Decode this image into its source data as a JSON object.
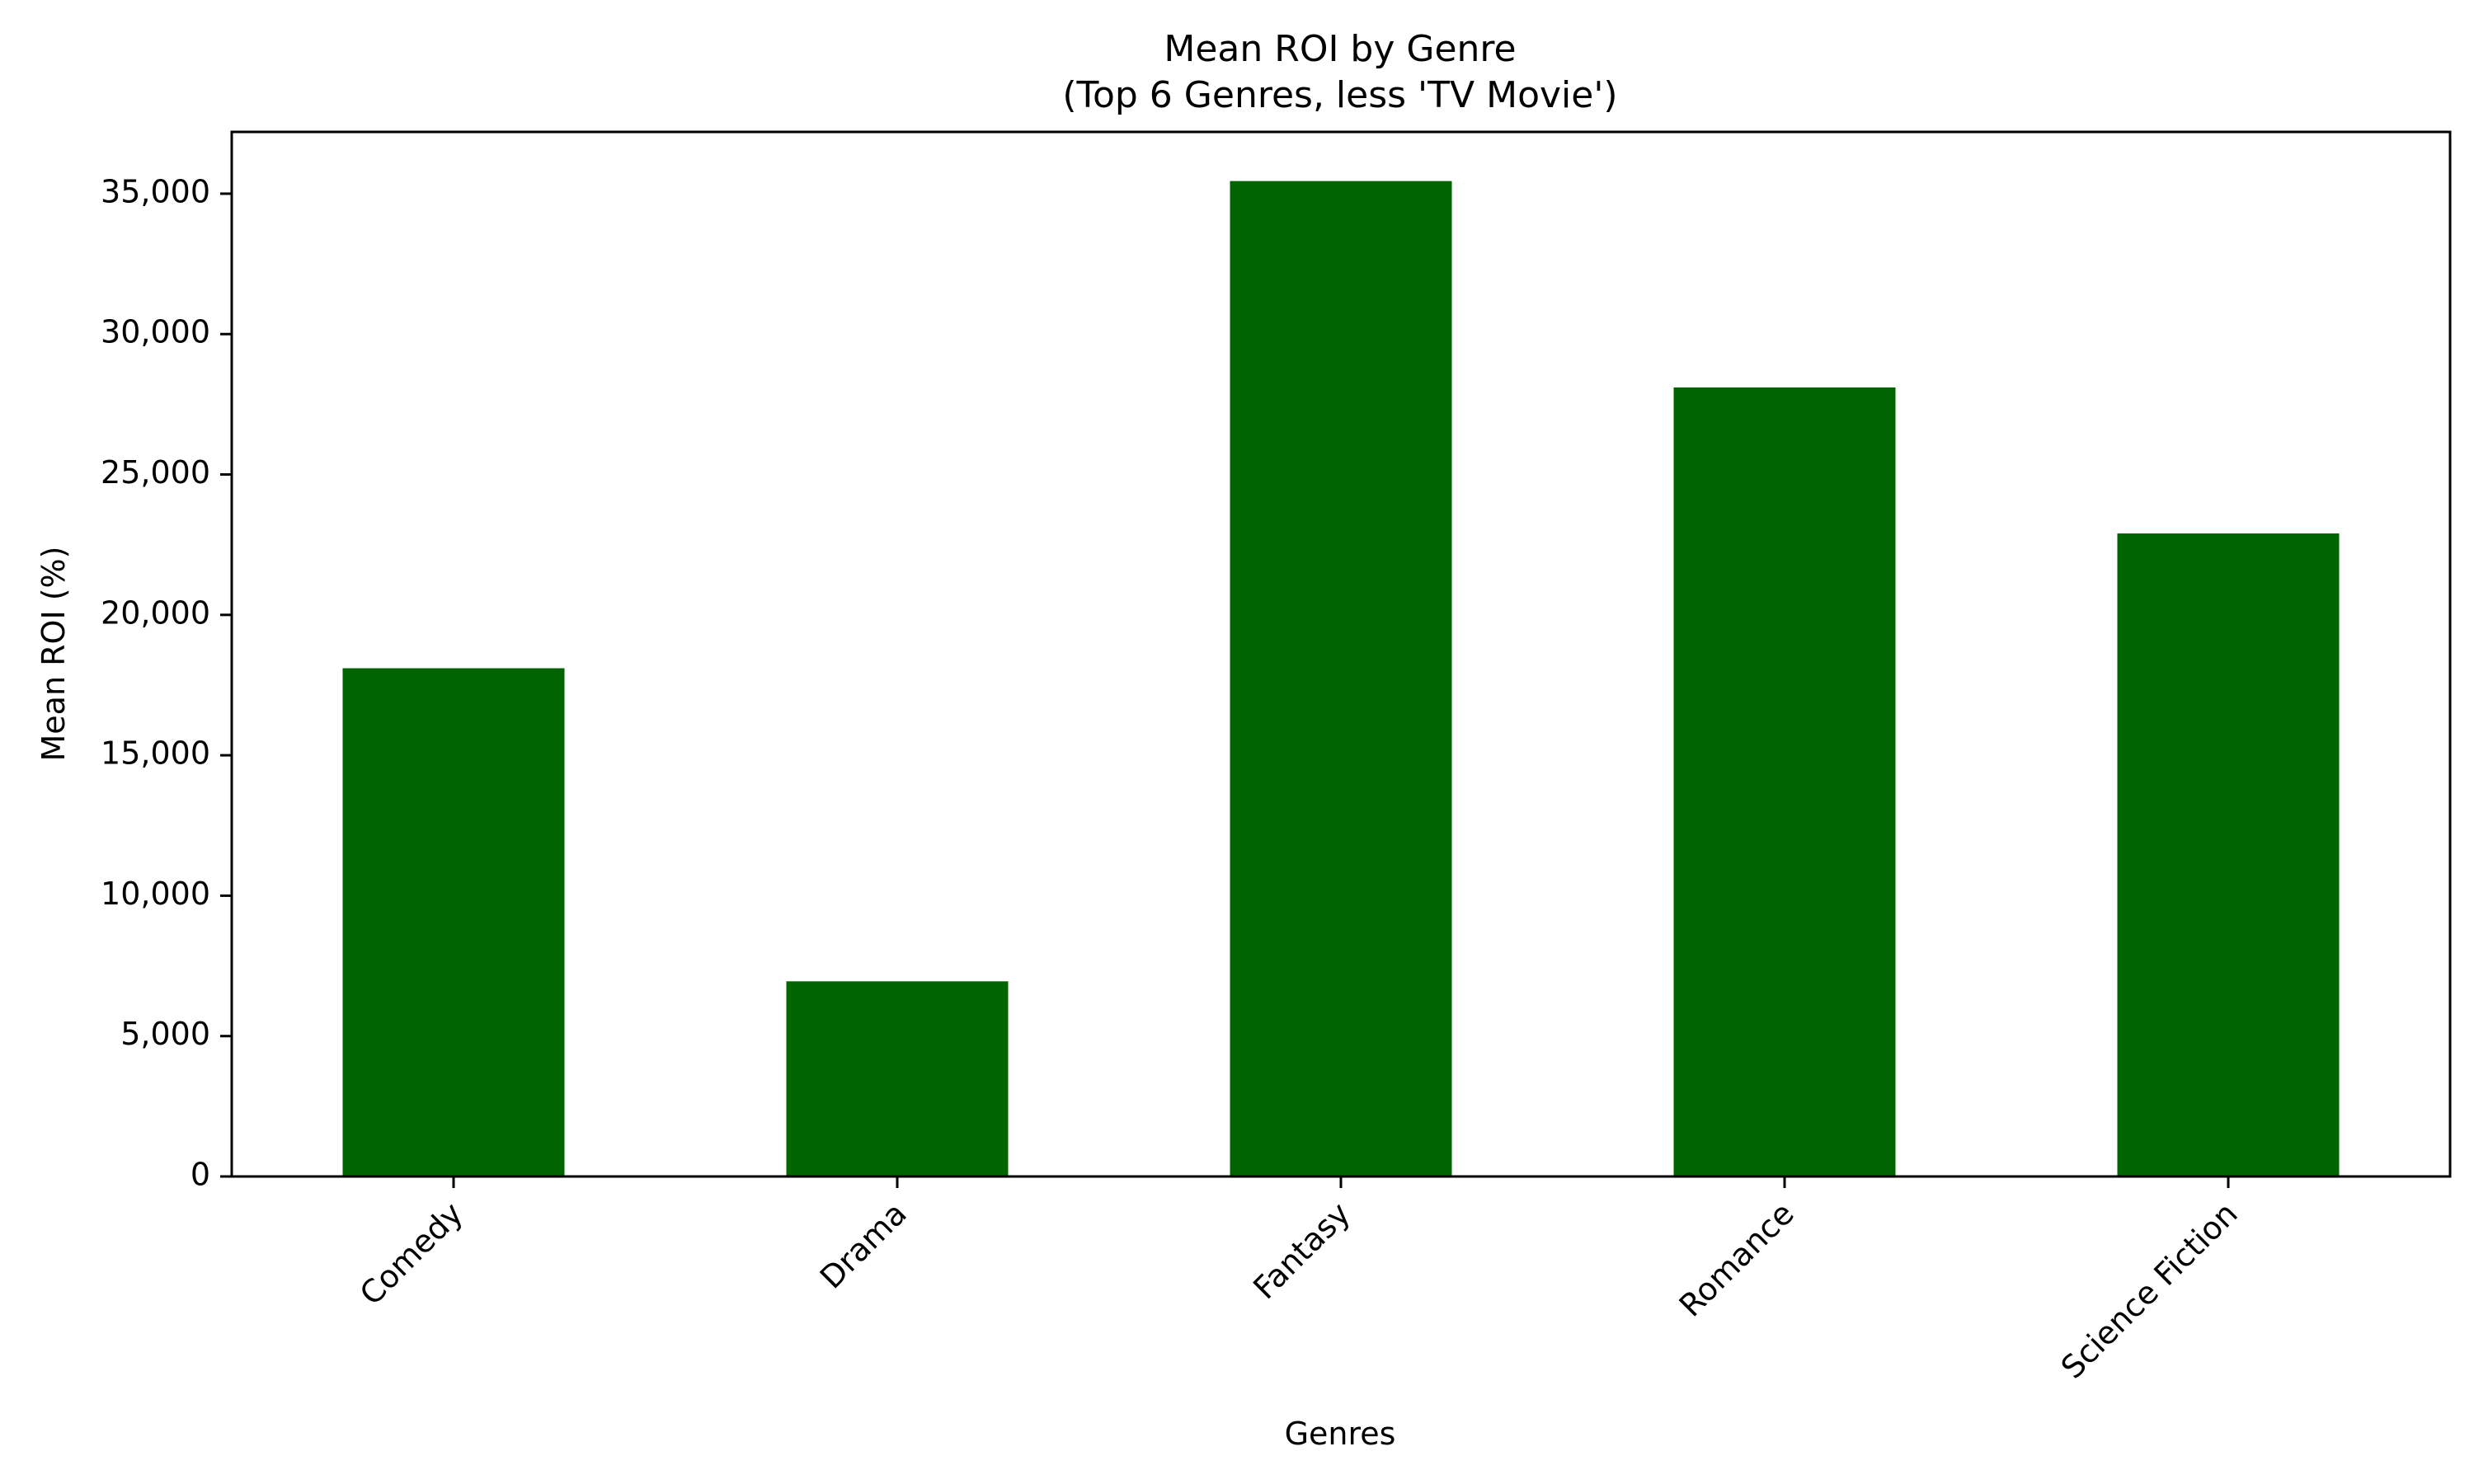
{
  "chart_data": {
    "type": "bar",
    "title_line1": "Mean ROI by Genre",
    "title_line2": "(Top 6 Genres, less 'TV Movie')",
    "xlabel": "Genres",
    "ylabel": "Mean ROI (%)",
    "categories": [
      "Comedy",
      "Drama",
      "Fantasy",
      "Romance",
      "Science Fiction"
    ],
    "values": [
      18100,
      6950,
      35450,
      28100,
      22900
    ],
    "ylim": [
      0,
      37200
    ],
    "yticks": [
      0,
      5000,
      10000,
      15000,
      20000,
      25000,
      30000,
      35000
    ],
    "ytick_labels": [
      "0",
      "5,000",
      "10,000",
      "15,000",
      "20,000",
      "25,000",
      "30,000",
      "35,000"
    ],
    "bar_color": "#006400",
    "grid": false,
    "legend": "none"
  }
}
